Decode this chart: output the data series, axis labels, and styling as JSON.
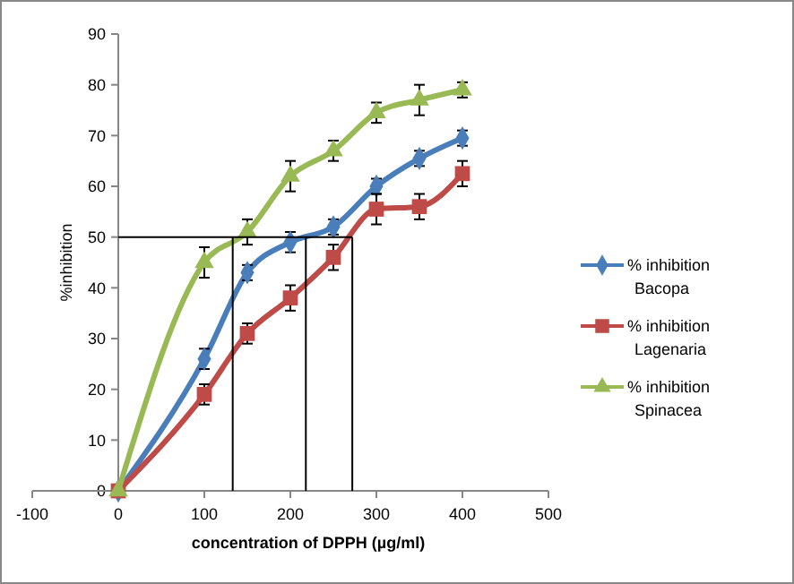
{
  "chart_data": {
    "type": "line",
    "xlabel": "concentration of DPPH (µg/ml)",
    "ylabel": "%inhibition",
    "xlim": [
      -100,
      500
    ],
    "xticks": [
      -100,
      0,
      100,
      200,
      300,
      400,
      500
    ],
    "ylim": [
      0,
      90
    ],
    "yticks": [
      0,
      10,
      20,
      30,
      40,
      50,
      60,
      70,
      80,
      90
    ],
    "grid": false,
    "legend": "right",
    "line_style": "solid",
    "series": [
      {
        "name": "% inhibition Bacopa",
        "color": "#4a7ebb",
        "marker": "diamond",
        "x": [
          0,
          100,
          150,
          200,
          250,
          300,
          350,
          400
        ],
        "values": [
          0,
          26,
          43,
          49,
          52,
          60,
          65.5,
          69.5
        ],
        "errors": [
          null,
          2,
          1.5,
          2,
          1.5,
          1.5,
          1.5,
          1.5
        ]
      },
      {
        "name": "% inhibition Lagenaria",
        "color": "#be4b48",
        "marker": "square",
        "x": [
          0,
          100,
          150,
          200,
          250,
          300,
          350,
          400
        ],
        "values": [
          0,
          19,
          31,
          38,
          46,
          55.5,
          56,
          62.5
        ],
        "errors": [
          null,
          2,
          2,
          2.5,
          2.5,
          3,
          2.5,
          2.5
        ]
      },
      {
        "name": "% inhibition Spinacea",
        "color": "#98b954",
        "marker": "triangle",
        "x": [
          0,
          100,
          150,
          200,
          250,
          300,
          350,
          400
        ],
        "values": [
          0,
          45,
          51,
          62,
          67,
          74.5,
          77,
          79
        ],
        "errors": [
          null,
          3,
          2.5,
          3,
          2,
          2,
          3,
          1.5
        ]
      },
      {
        "color": "#000000",
        "marker": "none",
        "x": [
          0,
          272
        ],
        "values": [
          50,
          50
        ]
      },
      {
        "color": "#000000",
        "marker": "none",
        "x": [
          133,
          133
        ],
        "values": [
          0,
          50
        ]
      },
      {
        "color": "#000000",
        "marker": "none",
        "x": [
          218,
          218
        ],
        "values": [
          0,
          50
        ]
      },
      {
        "color": "#000000",
        "marker": "none",
        "x": [
          272,
          272
        ],
        "values": [
          0,
          50
        ]
      }
    ]
  }
}
